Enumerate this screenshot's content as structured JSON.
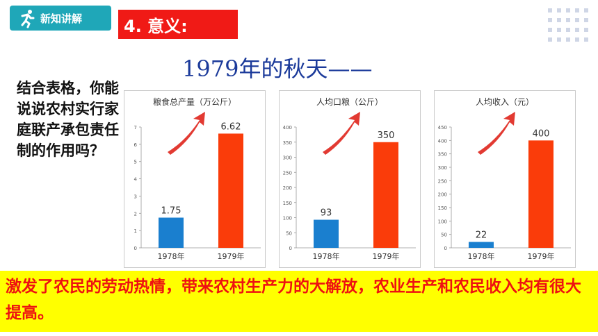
{
  "badge": {
    "label": "新知讲解",
    "icon": "runner-icon"
  },
  "section_title": "4. 意义:",
  "heading": "1979年的秋天——",
  "question": "结合表格，你能说说农村实行家庭联产承包责任制的作用吗？",
  "conclusion": "激发了农民的劳动热情，带来农村生产力的大解放，农业生产和农民收入均有很大提高。",
  "colors": {
    "bar_1978": "#1a7fcf",
    "bar_1979": "#fa3c0a",
    "arrow": "#e23a32",
    "banner_bg": "#ffff00",
    "banner_text": "#ee1111"
  },
  "chart_data": [
    {
      "type": "bar",
      "title": "粮食总产量（万公斤）",
      "categories": [
        "1978年",
        "1979年"
      ],
      "values": [
        1.75,
        6.62
      ],
      "value_labels": [
        "1.75",
        "6.62"
      ],
      "ylim": [
        0,
        7
      ],
      "yticks": [
        0,
        1,
        2,
        3,
        4,
        5,
        6,
        7
      ]
    },
    {
      "type": "bar",
      "title": "人均口粮（公斤）",
      "categories": [
        "1978年",
        "1979年"
      ],
      "values": [
        93,
        350
      ],
      "value_labels": [
        "93",
        "350"
      ],
      "ylim": [
        0,
        400
      ],
      "yticks": [
        0,
        50,
        100,
        150,
        200,
        250,
        300,
        350,
        400
      ]
    },
    {
      "type": "bar",
      "title": "人均收入（元）",
      "categories": [
        "1978年",
        "1979年"
      ],
      "values": [
        22,
        400
      ],
      "value_labels": [
        "22",
        "400"
      ],
      "ylim": [
        0,
        450
      ],
      "yticks": [
        0,
        50,
        100,
        150,
        200,
        250,
        300,
        350,
        400,
        450
      ]
    }
  ]
}
